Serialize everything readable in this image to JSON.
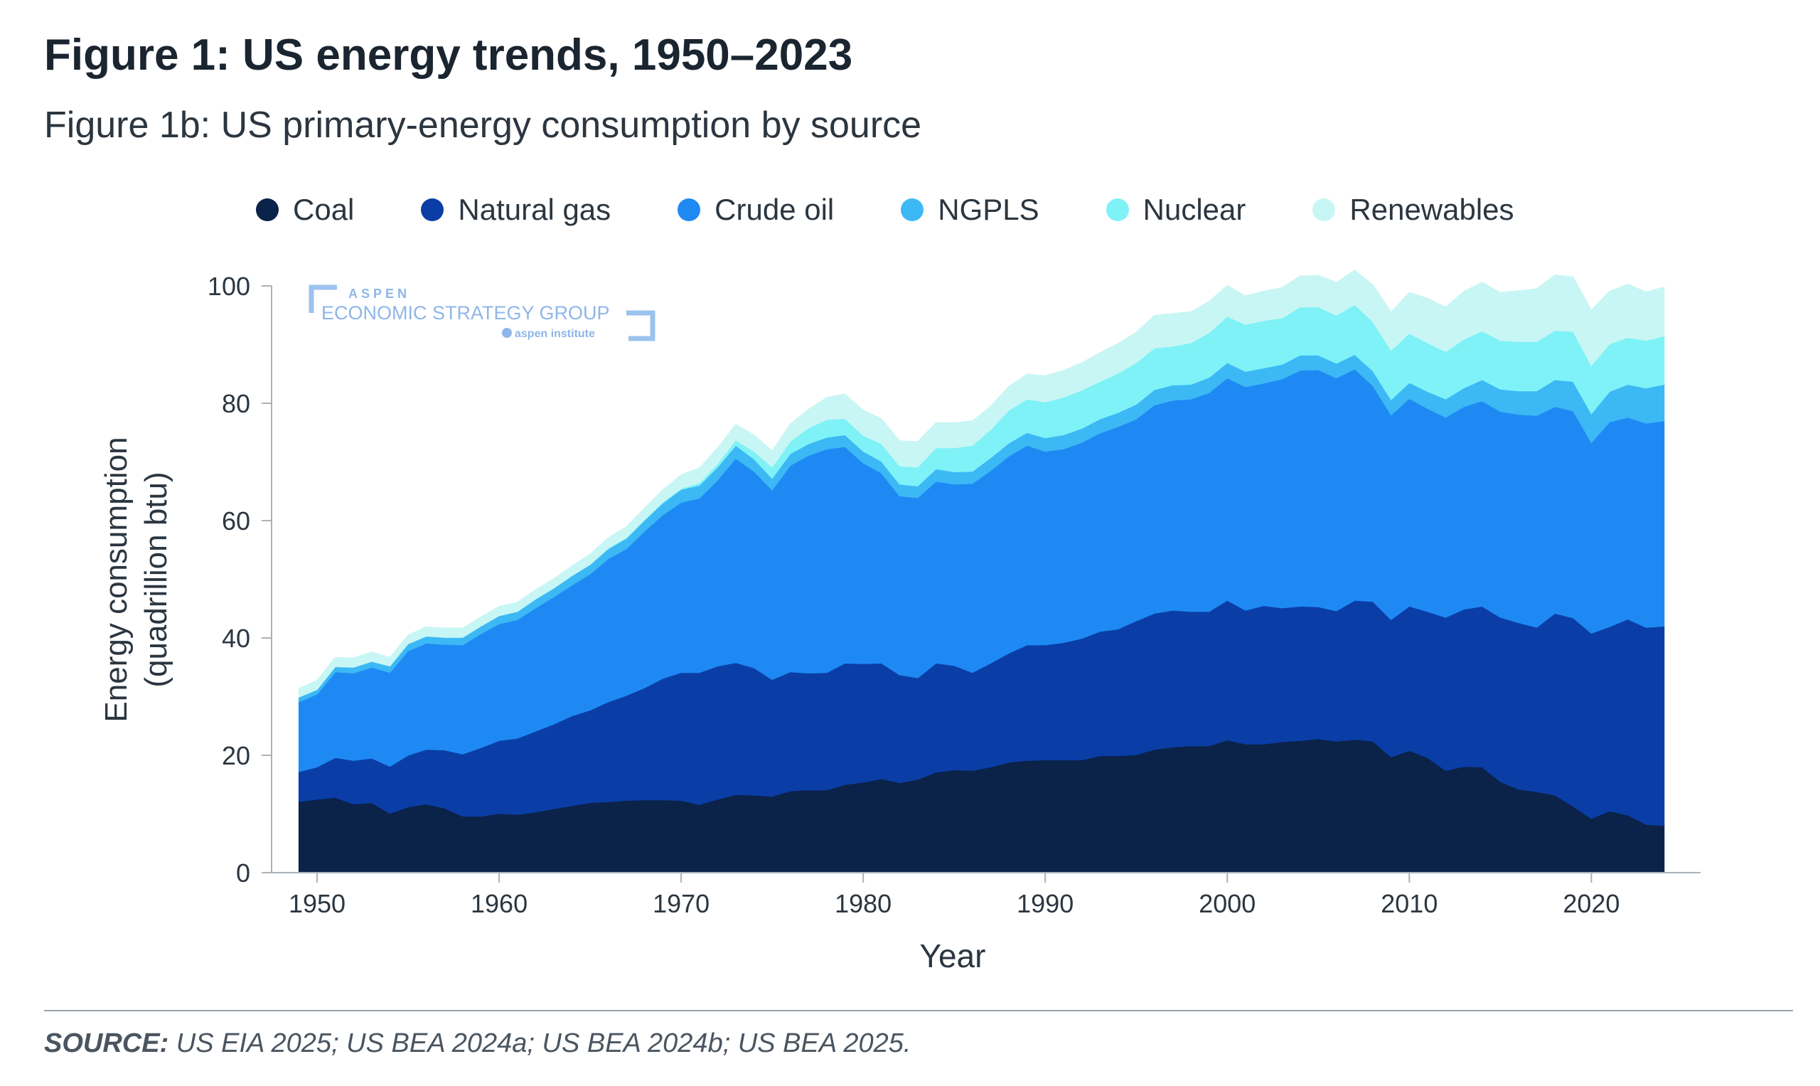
{
  "title": "Figure 1: US energy trends, 1950–2023",
  "subtitle": "Figure 1b: US primary-energy consumption by source",
  "source": {
    "label": "SOURCE:",
    "text": " US EIA 2025; US BEA 2024a; US BEA 2024b; US BEA 2025."
  },
  "watermark": {
    "line1": "ASPEN",
    "line2": "ECONOMIC STRATEGY GROUP",
    "line3": "aspen institute"
  },
  "chart_data": {
    "type": "area",
    "stacked": true,
    "title": "Figure 1b: US primary-energy consumption by source",
    "xlabel": "Year",
    "ylabel_line1": "Energy consumption",
    "ylabel_line2": "(quadrillion btu)",
    "xlim": [
      1947.5,
      2026
    ],
    "ylim": [
      0,
      100
    ],
    "xticks": [
      1950,
      1960,
      1970,
      1980,
      1990,
      2000,
      2010,
      2020
    ],
    "yticks": [
      0,
      20,
      40,
      60,
      80,
      100
    ],
    "legend_position": "top",
    "years": [
      1949,
      1950,
      1951,
      1952,
      1953,
      1954,
      1955,
      1956,
      1957,
      1958,
      1959,
      1960,
      1961,
      1962,
      1963,
      1964,
      1965,
      1966,
      1967,
      1968,
      1969,
      1970,
      1971,
      1972,
      1973,
      1974,
      1975,
      1976,
      1977,
      1978,
      1979,
      1980,
      1981,
      1982,
      1983,
      1984,
      1985,
      1986,
      1987,
      1988,
      1989,
      1990,
      1991,
      1992,
      1993,
      1994,
      1995,
      1996,
      1997,
      1998,
      1999,
      2000,
      2001,
      2002,
      2003,
      2004,
      2005,
      2006,
      2007,
      2008,
      2009,
      2010,
      2011,
      2012,
      2013,
      2014,
      2015,
      2016,
      2017,
      2018,
      2019,
      2020,
      2021,
      2022,
      2023,
      2024
    ],
    "series": [
      {
        "name": "Coal",
        "color": "#0b2249",
        "values": [
          12.1,
          12.5,
          12.8,
          11.7,
          11.9,
          10.1,
          11.2,
          11.7,
          11.0,
          9.6,
          9.6,
          10.1,
          9.9,
          10.3,
          10.9,
          11.4,
          11.9,
          12.1,
          12.3,
          12.4,
          12.4,
          12.3,
          11.6,
          12.5,
          13.3,
          13.2,
          13.0,
          13.9,
          14.1,
          14.1,
          15.0,
          15.4,
          16.0,
          15.3,
          15.9,
          17.1,
          17.5,
          17.4,
          18.0,
          18.8,
          19.1,
          19.2,
          19.2,
          19.2,
          19.9,
          19.9,
          20.1,
          21.0,
          21.4,
          21.6,
          21.6,
          22.6,
          21.9,
          21.9,
          22.3,
          22.5,
          22.8,
          22.4,
          22.7,
          22.4,
          19.7,
          20.8,
          19.6,
          17.4,
          18.1,
          18.0,
          15.5,
          14.2,
          13.8,
          13.2,
          11.3,
          9.2,
          10.5,
          9.8,
          8.2,
          8.0
        ]
      },
      {
        "name": "Natural gas",
        "color": "#0a3ea6",
        "values": [
          5.1,
          5.5,
          6.8,
          7.4,
          7.6,
          8.0,
          8.8,
          9.3,
          9.9,
          10.6,
          11.7,
          12.4,
          13.0,
          13.8,
          14.4,
          15.3,
          15.8,
          17.0,
          17.9,
          19.1,
          20.7,
          21.8,
          22.5,
          22.7,
          22.5,
          21.7,
          19.9,
          20.3,
          19.9,
          20.0,
          20.7,
          20.2,
          19.7,
          18.4,
          17.3,
          18.6,
          17.8,
          16.7,
          17.7,
          18.6,
          19.7,
          19.6,
          20.0,
          20.7,
          21.2,
          21.6,
          22.8,
          23.2,
          23.3,
          22.9,
          22.9,
          23.8,
          22.8,
          23.6,
          22.8,
          22.9,
          22.5,
          22.2,
          23.7,
          23.8,
          23.4,
          24.6,
          24.9,
          26.1,
          26.8,
          27.4,
          28.0,
          28.4,
          28.0,
          31.0,
          32.1,
          31.6,
          31.4,
          33.4,
          33.6,
          34.0
        ]
      },
      {
        "name": "Crude oil",
        "color": "#1f89f3",
        "values": [
          11.9,
          12.4,
          14.6,
          14.9,
          15.5,
          16.0,
          17.8,
          18.1,
          18.0,
          18.6,
          19.4,
          19.9,
          20.2,
          21.0,
          21.7,
          22.3,
          23.2,
          24.4,
          25.0,
          26.7,
          27.9,
          29.0,
          29.7,
          31.7,
          34.8,
          33.5,
          32.3,
          35.2,
          37.1,
          38.1,
          36.9,
          34.2,
          32.4,
          30.5,
          30.7,
          31.0,
          30.9,
          32.2,
          32.8,
          33.6,
          34.0,
          33.0,
          33.0,
          33.4,
          33.8,
          34.5,
          34.4,
          35.5,
          35.8,
          36.2,
          37.3,
          37.9,
          38.1,
          37.9,
          39.0,
          40.2,
          40.4,
          39.7,
          39.4,
          36.8,
          34.9,
          35.4,
          34.6,
          34.1,
          34.5,
          35.0,
          35.1,
          35.5,
          36.1,
          35.2,
          35.3,
          32.5,
          34.9,
          34.4,
          34.8,
          35.0
        ]
      },
      {
        "name": "NGPLS",
        "color": "#3cb8f5",
        "values": [
          0.8,
          0.8,
          0.9,
          1.0,
          1.0,
          1.1,
          1.2,
          1.2,
          1.2,
          1.3,
          1.3,
          1.4,
          1.4,
          1.5,
          1.5,
          1.6,
          1.6,
          1.7,
          1.8,
          1.9,
          2.0,
          2.2,
          2.2,
          2.2,
          2.2,
          2.1,
          2.0,
          2.0,
          2.0,
          2.0,
          2.0,
          2.0,
          2.0,
          2.0,
          2.0,
          2.1,
          2.1,
          2.1,
          2.2,
          2.2,
          2.2,
          2.3,
          2.4,
          2.4,
          2.4,
          2.4,
          2.5,
          2.6,
          2.6,
          2.5,
          2.6,
          2.6,
          2.6,
          2.6,
          2.5,
          2.6,
          2.5,
          2.5,
          2.5,
          2.5,
          2.6,
          2.7,
          2.9,
          3.1,
          3.2,
          3.6,
          3.8,
          4.0,
          4.2,
          4.6,
          5.0,
          4.9,
          5.2,
          5.6,
          6.0,
          6.2
        ]
      },
      {
        "name": "Nuclear",
        "color": "#7ef2f7",
        "values": [
          0,
          0,
          0,
          0,
          0,
          0,
          0,
          0,
          0,
          0,
          0,
          0,
          0,
          0,
          0,
          0,
          0,
          0.1,
          0.1,
          0.1,
          0.2,
          0.2,
          0.4,
          0.6,
          0.9,
          1.3,
          1.9,
          2.1,
          2.7,
          3.0,
          2.8,
          2.7,
          3.0,
          3.1,
          3.2,
          3.6,
          4.1,
          4.4,
          4.8,
          5.6,
          5.7,
          6.1,
          6.4,
          6.5,
          6.4,
          6.7,
          7.1,
          7.1,
          6.6,
          7.1,
          7.6,
          7.9,
          8.0,
          8.1,
          7.9,
          8.2,
          8.2,
          8.2,
          8.5,
          8.4,
          8.4,
          8.4,
          8.3,
          8.1,
          8.3,
          8.3,
          8.3,
          8.4,
          8.4,
          8.4,
          8.5,
          8.2,
          8.1,
          8.0,
          8.1,
          8.2
        ]
      },
      {
        "name": "Renewables",
        "color": "#c8f6f4",
        "values": [
          1.5,
          1.6,
          1.6,
          1.6,
          1.6,
          1.5,
          1.5,
          1.6,
          1.6,
          1.6,
          1.6,
          1.6,
          1.6,
          1.6,
          1.6,
          1.7,
          1.8,
          1.8,
          1.9,
          2.0,
          2.1,
          2.3,
          2.6,
          2.7,
          2.7,
          2.8,
          2.8,
          3.0,
          3.2,
          3.8,
          4.2,
          4.3,
          4.3,
          4.3,
          4.4,
          4.3,
          4.3,
          4.2,
          4.0,
          4.1,
          4.3,
          4.5,
          4.6,
          4.7,
          4.9,
          5.1,
          5.2,
          5.6,
          5.6,
          5.3,
          5.4,
          5.3,
          4.9,
          5.0,
          5.2,
          5.3,
          5.4,
          5.6,
          5.9,
          6.3,
          6.6,
          7.0,
          7.6,
          7.6,
          8.2,
          8.3,
          8.2,
          8.7,
          9.0,
          9.5,
          9.3,
          9.5,
          9.0,
          9.1,
          8.3,
          8.4
        ]
      }
    ]
  }
}
